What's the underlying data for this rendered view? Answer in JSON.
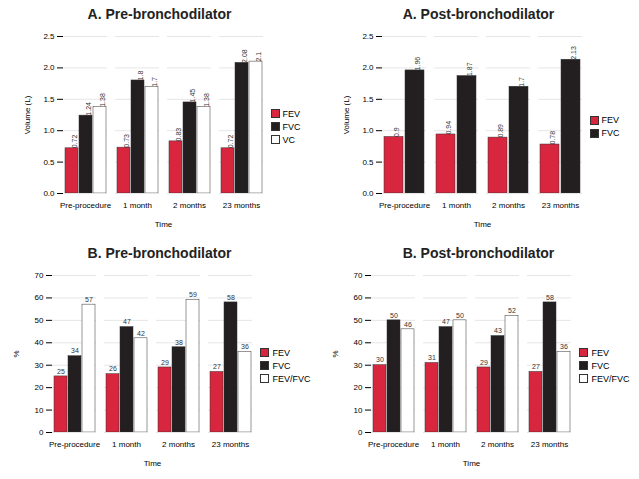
{
  "chart_data": [
    {
      "type": "bar",
      "title": "A. Pre-bronchodilator",
      "x_label": "Time",
      "y_label": "Volume (L)",
      "categories": [
        "Pre-procedure",
        "1 month",
        "2 months",
        "23 months"
      ],
      "series": [
        {
          "name": "FEV",
          "color": "#d7263d",
          "values": [
            0.72,
            0.73,
            0.83,
            0.72
          ]
        },
        {
          "name": "FVC",
          "color": "#231f20",
          "values": [
            1.24,
            1.8,
            1.45,
            2.08
          ]
        },
        {
          "name": "VC",
          "color": "#ffffff",
          "values": [
            1.38,
            1.7,
            1.38,
            2.1
          ]
        }
      ],
      "ylim": [
        0,
        2.5
      ],
      "yticks": [
        0,
        0.5,
        1,
        1.5,
        2,
        2.5
      ],
      "grid": true,
      "data_labels": true,
      "legend": "right"
    },
    {
      "type": "bar",
      "title": "A. Post-bronchodilator",
      "x_label": "Time",
      "y_label": "Volume (L)",
      "categories": [
        "Pre-procedure",
        "1 month",
        "2 months",
        "23 months"
      ],
      "series": [
        {
          "name": "FEV",
          "color": "#d7263d",
          "values": [
            0.9,
            0.94,
            0.89,
            0.78
          ]
        },
        {
          "name": "FVC",
          "color": "#231f20",
          "values": [
            1.96,
            1.87,
            1.7,
            2.13
          ]
        }
      ],
      "ylim": [
        0,
        2.5
      ],
      "yticks": [
        0,
        0.5,
        1,
        1.5,
        2,
        2.5
      ],
      "grid": true,
      "data_labels": true,
      "legend": "right"
    },
    {
      "type": "bar",
      "title": "B. Pre-bronchodilator",
      "x_label": "Time",
      "y_label": "%",
      "categories": [
        "Pre-procedure",
        "1 month",
        "2 months",
        "23 months"
      ],
      "series": [
        {
          "name": "FEV",
          "color": "#d7263d",
          "values": [
            25,
            26,
            29,
            27
          ]
        },
        {
          "name": "FVC",
          "color": "#231f20",
          "values": [
            34,
            47,
            38,
            58
          ]
        },
        {
          "name": "FEV/FVC",
          "color": "#ffffff",
          "values": [
            57,
            42,
            59,
            36
          ]
        }
      ],
      "ylim": [
        0,
        70
      ],
      "yticks": [
        0,
        10,
        20,
        30,
        40,
        50,
        60,
        70
      ],
      "grid": true,
      "data_labels": true,
      "legend": "right"
    },
    {
      "type": "bar",
      "title": "B. Post-bronchodilator",
      "x_label": "Time",
      "y_label": "%",
      "categories": [
        "Pre-procedure",
        "1 month",
        "2 months",
        "23 months"
      ],
      "series": [
        {
          "name": "FEV",
          "color": "#d7263d",
          "values": [
            30,
            31,
            29,
            27
          ]
        },
        {
          "name": "FVC",
          "color": "#231f20",
          "values": [
            50,
            47,
            43,
            58
          ]
        },
        {
          "name": "FEV/FVC",
          "color": "#ffffff",
          "values": [
            46,
            50,
            52,
            36
          ]
        }
      ],
      "ylim": [
        0,
        70
      ],
      "yticks": [
        0,
        10,
        20,
        30,
        40,
        50,
        60,
        70
      ],
      "grid": true,
      "data_labels": true,
      "legend": "right"
    }
  ]
}
